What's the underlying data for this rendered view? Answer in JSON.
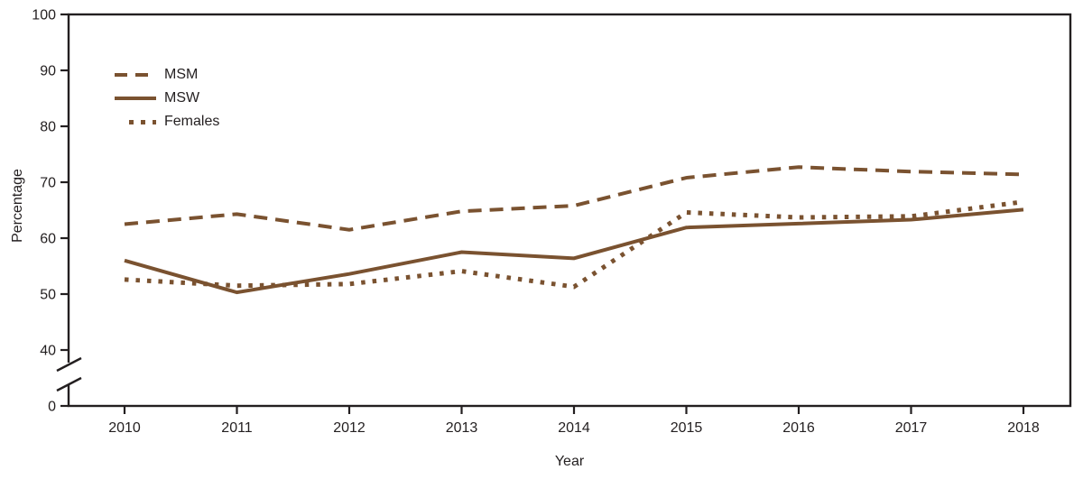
{
  "chart_data": {
    "type": "line",
    "title": "",
    "xlabel": "Year",
    "ylabel": "Percentage",
    "categories": [
      2010,
      2011,
      2012,
      2013,
      2014,
      2015,
      2016,
      2017,
      2018
    ],
    "series": [
      {
        "name": "MSM",
        "line_style": "dashed",
        "values": [
          62.5,
          64.3,
          61.5,
          64.8,
          65.8,
          70.8,
          72.7,
          71.9,
          71.4
        ]
      },
      {
        "name": "MSW",
        "line_style": "solid",
        "values": [
          56.0,
          50.3,
          53.6,
          57.5,
          56.4,
          61.9,
          62.6,
          63.3,
          65.1
        ]
      },
      {
        "name": "Females",
        "line_style": "dotted",
        "values": [
          52.6,
          51.5,
          51.8,
          54.1,
          51.3,
          64.6,
          63.7,
          63.9,
          66.5
        ]
      }
    ],
    "y_ticks": [
      100,
      90,
      80,
      70,
      60,
      50,
      40,
      0
    ],
    "ylim": [
      0,
      100
    ],
    "axis_break_between": [
      0,
      40
    ],
    "grid": false,
    "legend_position": "upper-left-inside",
    "colors": {
      "series": "#7a5230",
      "axis": "#231f20",
      "text": "#231f20",
      "background": "#ffffff"
    }
  }
}
